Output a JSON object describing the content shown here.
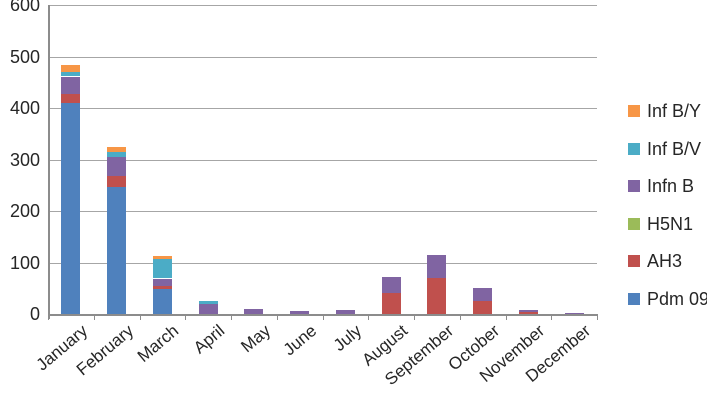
{
  "chart_data": {
    "type": "bar",
    "stacked": true,
    "title": "",
    "xlabel": "",
    "ylabel": "",
    "categories": [
      "January",
      "February",
      "March",
      "April",
      "May",
      "June",
      "July",
      "August",
      "September",
      "October",
      "November",
      "December"
    ],
    "series": [
      {
        "name": "Pdm 09",
        "color": "#4F81BD",
        "values": [
          410,
          247,
          48,
          0,
          0,
          0,
          0,
          0,
          0,
          0,
          0,
          0
        ]
      },
      {
        "name": "AH3",
        "color": "#C0504D",
        "values": [
          18,
          21,
          6,
          0,
          0,
          0,
          0,
          40,
          70,
          25,
          4,
          0
        ]
      },
      {
        "name": "H5N1",
        "color": "#9BBB59",
        "values": [
          0,
          0,
          0,
          0,
          0,
          0,
          0,
          0,
          0,
          0,
          0,
          0
        ]
      },
      {
        "name": "Infn B",
        "color": "#8064A2",
        "values": [
          33,
          36,
          15,
          19,
          10,
          6,
          8,
          31,
          45,
          25,
          4,
          3
        ]
      },
      {
        "name": "Inf B/V",
        "color": "#4BACC6",
        "values": [
          9,
          10,
          38,
          6,
          0,
          0,
          0,
          0,
          0,
          0,
          0,
          0
        ]
      },
      {
        "name": "Inf B/Y",
        "color": "#F79646",
        "values": [
          14,
          11,
          6,
          0,
          0,
          0,
          0,
          0,
          0,
          0,
          0,
          0
        ]
      }
    ],
    "y_axis": {
      "min": 0,
      "max": 600,
      "step": 100,
      "tick_labels": [
        "0",
        "100",
        "200",
        "300",
        "400",
        "500",
        "600"
      ]
    },
    "legend": {
      "position": "right",
      "order": [
        "Inf B/Y",
        "Inf B/V",
        "Infn B",
        "H5N1",
        "AH3",
        "Pdm 09"
      ]
    },
    "grid": true
  },
  "colors": {
    "background": "#FFFFFF",
    "gridline": "#A6A6A6",
    "axis": "#8C8C8C",
    "text": "#262626"
  }
}
